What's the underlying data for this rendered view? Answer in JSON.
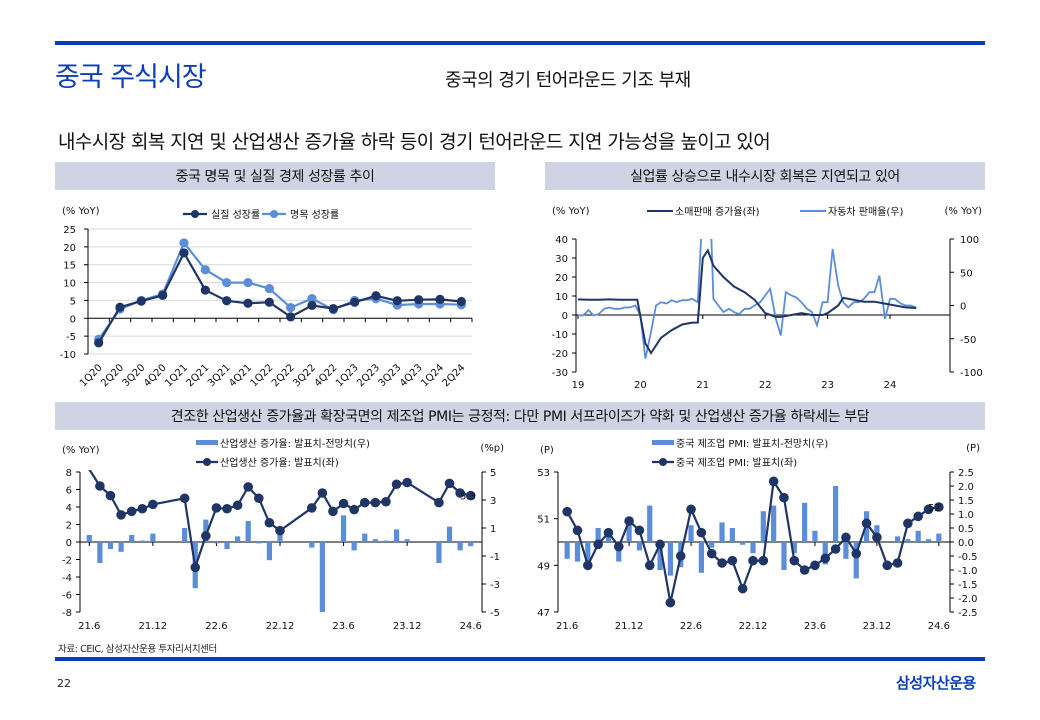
{
  "header": {
    "title": "중국 주식시장",
    "subtitle": "중국의 경기 턴어라운드 기조 부재",
    "headline": "내수시장 회복 지연 및 산업생산 증가율 하락 등이 경기 턴어라운드 지연 가능성을 높이고 있어"
  },
  "banners": {
    "chart1": "중국 명목 및 실질 경제 성장률 추이",
    "chart2": "실업률 상승으로 내수시장 회복은 지연되고 있어",
    "bottom": "견조한 산업생산 증가율과 확장국면의 제조업 PMI는 긍정적: 다만 PMI 서프라이즈가 약화 및 산업생산 증가율 하락세는 부담"
  },
  "colors": {
    "brand": "#0b3fb8",
    "dark_series": "#1f3566",
    "light_series": "#5b8dd9",
    "banner_bg": "#cfd3e3",
    "grid": "#d9d9d9"
  },
  "footer": {
    "source": "자료: CEIC, 삼성자산운용 투자리서치센터",
    "page_number": "22",
    "brand": "삼성자산운용"
  },
  "chart_data": [
    {
      "type": "line",
      "title": "중국 명목 및 실질 경제 성장률 추이",
      "ylabel": "(% YoY)",
      "xlabel": "",
      "ylim": [
        -10,
        25
      ],
      "yticks": [
        25,
        20,
        15,
        10,
        5,
        0,
        -5,
        -10
      ],
      "grid": true,
      "legend_position": "top-center",
      "categories": [
        "1Q20",
        "2Q20",
        "3Q20",
        "4Q20",
        "1Q21",
        "2Q21",
        "3Q21",
        "4Q21",
        "1Q22",
        "2Q22",
        "3Q22",
        "4Q22",
        "1Q23",
        "2Q23",
        "3Q23",
        "4Q23",
        "1Q24",
        "2Q24"
      ],
      "series": [
        {
          "name": "실질 성장률",
          "color": "#1f3566",
          "values": [
            -6.9,
            3.1,
            4.8,
            6.4,
            18.3,
            7.9,
            4.9,
            4.2,
            4.5,
            0.4,
            3.6,
            2.7,
            4.5,
            6.3,
            4.9,
            5.2,
            5.3,
            4.7
          ]
        },
        {
          "name": "명목 성장률",
          "color": "#5b8dd9",
          "values": [
            -5.9,
            2.6,
            5.0,
            6.8,
            21.1,
            13.6,
            10.0,
            10.0,
            8.3,
            3.0,
            5.5,
            2.4,
            5.0,
            5.5,
            3.7,
            4.0,
            4.0,
            3.8
          ]
        }
      ]
    },
    {
      "type": "line",
      "title": "실업률 상승으로 내수시장 회복은 지연되고 있어",
      "ylabel": "(% YoY)",
      "ylabel_right": "(% YoY)",
      "ylim": [
        -30,
        40
      ],
      "ylim_right": [
        -100,
        100
      ],
      "yticks": [
        40,
        30,
        20,
        10,
        0,
        -10,
        -20,
        -30
      ],
      "yticks_right": [
        100,
        50,
        0,
        -50,
        -100
      ],
      "xticks": [
        "19",
        "20",
        "21",
        "22",
        "23",
        "24"
      ],
      "x_range": [
        2019.0,
        2025.0
      ],
      "grid": false,
      "legend_position": "top-center",
      "series": [
        {
          "name": "소매판매 증가율(좌)",
          "axis": "left",
          "color": "#1f3566",
          "x": [
            2019.0,
            2019.17,
            2019.33,
            2019.5,
            2019.67,
            2019.83,
            2019.95,
            2020.08,
            2020.17,
            2020.33,
            2020.5,
            2020.67,
            2020.83,
            2020.92,
            2021.0,
            2021.08,
            2021.17,
            2021.33,
            2021.5,
            2021.67,
            2021.83,
            2022.0,
            2022.17,
            2022.25,
            2022.42,
            2022.58,
            2022.75,
            2022.92,
            2023.0,
            2023.17,
            2023.25,
            2023.42,
            2023.58,
            2023.75,
            2023.92,
            2024.08,
            2024.25,
            2024.42
          ],
          "values": [
            8.2,
            8.0,
            8.0,
            8.2,
            8.0,
            8.0,
            8.0,
            -15,
            -20,
            -12,
            -8,
            -5,
            -4,
            -4,
            30,
            34,
            26,
            20,
            15,
            12,
            8,
            1,
            -1,
            -1,
            0,
            1,
            0,
            0,
            1,
            5,
            9,
            8,
            7,
            7,
            6,
            5,
            4,
            3.7
          ]
        },
        {
          "name": "자동차 판매율(우)",
          "axis": "right",
          "color": "#5b8dd9",
          "x": [
            2019.0,
            2019.08,
            2019.17,
            2019.25,
            2019.33,
            2019.42,
            2019.5,
            2019.58,
            2019.67,
            2019.75,
            2019.83,
            2019.92,
            2020.0,
            2020.08,
            2020.17,
            2020.25,
            2020.33,
            2020.42,
            2020.5,
            2020.58,
            2020.67,
            2020.75,
            2020.83,
            2020.92,
            2021.0,
            2021.04,
            2021.12,
            2021.17,
            2021.25,
            2021.33,
            2021.42,
            2021.5,
            2021.58,
            2021.67,
            2021.75,
            2021.83,
            2021.92,
            2022.08,
            2022.17,
            2022.25,
            2022.33,
            2022.42,
            2022.5,
            2022.58,
            2022.67,
            2022.75,
            2022.83,
            2022.92,
            2023.0,
            2023.08,
            2023.17,
            2023.25,
            2023.33,
            2023.42,
            2023.5,
            2023.58,
            2023.67,
            2023.75,
            2023.83,
            2023.92,
            2024.0,
            2024.08,
            2024.17,
            2024.25,
            2024.33,
            2024.42
          ],
          "values": [
            -15,
            -15,
            -7,
            -15,
            -13,
            -5,
            -3,
            -5,
            -5,
            -3,
            -3,
            0,
            -15,
            -80,
            -40,
            0,
            5,
            3,
            8,
            5,
            8,
            8,
            10,
            5,
            150,
            365,
            150,
            10,
            0,
            -10,
            -5,
            -10,
            -13,
            -5,
            -5,
            0,
            5,
            25,
            -20,
            -45,
            20,
            15,
            12,
            5,
            -5,
            -10,
            -30,
            5,
            5,
            85,
            30,
            5,
            -3,
            5,
            5,
            10,
            20,
            20,
            45,
            -20,
            10,
            10,
            3,
            0,
            0,
            -3
          ]
        }
      ]
    },
    {
      "type": "bar+line",
      "title": "산업생산 증가율",
      "ylabel": "(% YoY)",
      "ylabel_right": "(%p)",
      "ylim": [
        -8,
        8
      ],
      "ylim_right": [
        -5,
        5
      ],
      "yticks": [
        8,
        6,
        4,
        2,
        0,
        -2,
        -4,
        -6,
        -8
      ],
      "yticks_right": [
        5,
        3,
        1,
        -1,
        -3,
        -5
      ],
      "xticks": [
        "21.6",
        "21.12",
        "22.6",
        "22.12",
        "23.6",
        "23.12",
        "24.6"
      ],
      "grid": false,
      "legend_position": "top-center",
      "annotation": "5.3",
      "categories": [
        "21.6",
        "21.7",
        "21.8",
        "21.9",
        "21.10",
        "21.11",
        "21.12",
        "22.1",
        "22.2",
        "22.3",
        "22.4",
        "22.5",
        "22.6",
        "22.7",
        "22.8",
        "22.9",
        "22.10",
        "22.11",
        "22.12",
        "23.1",
        "23.2",
        "23.3",
        "23.4",
        "23.5",
        "23.6",
        "23.7",
        "23.8",
        "23.9",
        "23.10",
        "23.11",
        "23.12",
        "24.1",
        "24.2",
        "24.3",
        "24.4",
        "24.5",
        "24.6"
      ],
      "series": [
        {
          "name": "산업생산 증가율: 발표치-전망치(우)",
          "axis": "right",
          "kind": "bar",
          "color": "#5b8dd9",
          "values": [
            0.5,
            -1.5,
            -0.5,
            -0.7,
            0.5,
            0.1,
            0.6,
            null,
            null,
            1.0,
            -3.3,
            1.6,
            -0.1,
            -0.5,
            0.4,
            1.5,
            -0.1,
            -1.3,
            1.1,
            null,
            null,
            -0.4,
            -5.0,
            null,
            1.9,
            -0.6,
            0.6,
            0.2,
            0.1,
            0.9,
            0.2,
            null,
            null,
            -1.5,
            1.1,
            -0.6,
            -0.3
          ]
        },
        {
          "name": "산업생산 증가율: 발표치(좌)",
          "axis": "left",
          "kind": "line",
          "color": "#1f3566",
          "values": [
            8.3,
            6.4,
            5.3,
            3.1,
            3.5,
            3.8,
            4.3,
            null,
            null,
            5.0,
            -2.9,
            0.7,
            3.9,
            3.8,
            4.2,
            6.3,
            5.0,
            2.2,
            1.3,
            null,
            null,
            3.9,
            5.6,
            3.5,
            4.4,
            3.7,
            4.5,
            4.5,
            4.6,
            6.6,
            6.8,
            null,
            null,
            4.5,
            6.7,
            5.6,
            5.3
          ]
        }
      ]
    },
    {
      "type": "bar+line",
      "title": "중국 제조업 PMI",
      "ylabel": "(P)",
      "ylabel_right": "(P)",
      "ylim": [
        47,
        53
      ],
      "ylim_right": [
        -2.5,
        2.5
      ],
      "yticks": [
        53,
        51,
        49,
        47
      ],
      "yticks_right": [
        2.5,
        2.0,
        1.5,
        1.0,
        0.5,
        0.0,
        -0.5,
        -1.0,
        -1.5,
        -2.0,
        -2.5
      ],
      "xticks": [
        "21.6",
        "21.12",
        "22.6",
        "22.12",
        "23.6",
        "23.12",
        "24.6"
      ],
      "grid": false,
      "legend_position": "top-center",
      "annotation": "52",
      "categories": [
        "21.6",
        "21.7",
        "21.8",
        "21.9",
        "21.10",
        "21.11",
        "21.12",
        "22.1",
        "22.2",
        "22.3",
        "22.4",
        "22.5",
        "22.6",
        "22.7",
        "22.8",
        "22.9",
        "22.10",
        "22.11",
        "22.12",
        "23.1",
        "23.2",
        "23.3",
        "23.4",
        "23.5",
        "23.6",
        "23.7",
        "23.8",
        "23.9",
        "23.10",
        "23.11",
        "23.12",
        "24.1",
        "24.2",
        "24.3",
        "24.4",
        "24.5",
        "24.6"
      ],
      "series": [
        {
          "name": "중국 제조업 PMI: 발표치-전망치(우)",
          "axis": "right",
          "kind": "bar",
          "color": "#5b8dd9",
          "values": [
            -0.6,
            -0.7,
            -0.7,
            0.5,
            0.3,
            -0.7,
            0.9,
            -0.3,
            1.3,
            -1.0,
            -1.2,
            -0.9,
            0.6,
            -1.1,
            -0.2,
            0.7,
            0.5,
            -0.1,
            -0.4,
            1.1,
            1.3,
            -1.0,
            -0.4,
            1.4,
            0.4,
            -0.8,
            2.0,
            -0.6,
            -1.3,
            1.1,
            0.6,
            null,
            0.2,
            0.1,
            0.4,
            0.1,
            0.3
          ]
        },
        {
          "name": "중국 제조업 PMI: 발표치(좌)",
          "axis": "left",
          "kind": "line",
          "color": "#1f3566",
          "values": [
            51.3,
            50.5,
            49.0,
            49.9,
            50.4,
            49.8,
            50.9,
            50.5,
            49.0,
            49.9,
            47.4,
            49.4,
            51.4,
            50.4,
            49.5,
            49.1,
            49.2,
            48.0,
            49.2,
            49.2,
            52.6,
            51.9,
            49.2,
            48.8,
            49.0,
            49.3,
            49.7,
            50.2,
            49.5,
            50.8,
            50.2,
            49.0,
            49.1,
            50.8,
            51.1,
            51.4,
            51.5
          ]
        }
      ]
    }
  ]
}
